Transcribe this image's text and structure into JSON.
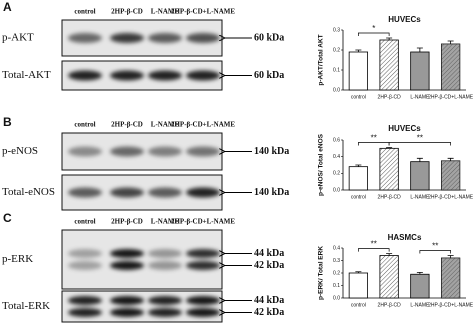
{
  "blots": [
    {
      "label": "A",
      "lanes": [
        "control",
        "2HP-β-CD",
        "L-NAME",
        "2HP-β-CD+L-NAME"
      ],
      "rows": [
        {
          "name": "p-AKT",
          "markers": [
            "60 kDa"
          ]
        },
        {
          "name": "Total-AKT",
          "markers": [
            "60 kDa"
          ]
        }
      ]
    },
    {
      "label": "B",
      "lanes": [
        "control",
        "2HP-β-CD",
        "L-NAME",
        "2HP-β-CD+L-NAME"
      ],
      "rows": [
        {
          "name": "p-eNOS",
          "markers": [
            "140 kDa"
          ]
        },
        {
          "name": "Total-eNOS",
          "markers": [
            "140 kDa"
          ]
        }
      ]
    },
    {
      "label": "C",
      "lanes": [
        "control",
        "2HP-β-CD",
        "L-NAME",
        "2HP-β-CD+L-NAME"
      ],
      "rows": [
        {
          "name": "p-ERK",
          "markers": [
            "44 kDa",
            "42 kDa"
          ]
        },
        {
          "name": "Total-ERK",
          "markers": [
            "44 kDa",
            "42 kDa"
          ]
        }
      ]
    }
  ],
  "chart_data": [
    {
      "type": "bar",
      "title": "HUVECs",
      "y_label": "p-AKT/Total AKT",
      "categories": [
        "control",
        "2HP-β-CD",
        "L-NAME",
        "2HP-β-CD+L-NAME"
      ],
      "values": [
        0.19,
        0.25,
        0.19,
        0.23
      ],
      "errors": [
        0.01,
        0.01,
        0.02,
        0.015
      ],
      "colors": [
        "#ffffff",
        "#ffffff",
        "#999999",
        "#666666"
      ],
      "hatch": [
        false,
        true,
        false,
        true
      ],
      "ylim": [
        0,
        0.3
      ],
      "yticks": [
        {
          "value": 0,
          "label": "0.0"
        },
        {
          "value": 0.1,
          "label": "0.1"
        },
        {
          "value": 0.2,
          "label": "0.2"
        },
        {
          "value": 0.3,
          "label": "0.3"
        }
      ],
      "annotations": [
        {
          "text": "*",
          "from": 0,
          "to": 1
        }
      ]
    },
    {
      "type": "bar",
      "title": "HUVECs",
      "y_label": "p-eNOS/ Total eNOS",
      "categories": [
        "control",
        "2HP-β-CD",
        "L-NAME",
        "2HP-β-CD+L-NAME"
      ],
      "values": [
        0.28,
        0.5,
        0.34,
        0.35
      ],
      "errors": [
        0.02,
        0.01,
        0.04,
        0.03
      ],
      "colors": [
        "#ffffff",
        "#ffffff",
        "#999999",
        "#666666"
      ],
      "hatch": [
        false,
        true,
        false,
        true
      ],
      "ylim": [
        0,
        0.6
      ],
      "yticks": [
        {
          "value": 0,
          "label": "0.0"
        },
        {
          "value": 0.2,
          "label": "0.2"
        },
        {
          "value": 0.4,
          "label": "0.4"
        },
        {
          "value": 0.6,
          "label": "0.6"
        }
      ],
      "annotations": [
        {
          "text": "**",
          "from": 0,
          "to": 1
        },
        {
          "text": "**",
          "from": 1,
          "to": 3
        }
      ]
    },
    {
      "type": "bar",
      "title": "HASMCs",
      "y_label": "p-ERK/ Total ERK",
      "categories": [
        "control",
        "2HP-β-CD",
        "L-NAME",
        "2HP-β-CD+L-NAME"
      ],
      "values": [
        0.2,
        0.34,
        0.19,
        0.32
      ],
      "errors": [
        0.01,
        0.015,
        0.015,
        0.02
      ],
      "colors": [
        "#ffffff",
        "#ffffff",
        "#999999",
        "#666666"
      ],
      "hatch": [
        false,
        true,
        false,
        true
      ],
      "ylim": [
        0,
        0.4
      ],
      "yticks": [
        {
          "value": 0,
          "label": "0.0"
        },
        {
          "value": 0.1,
          "label": "0.1"
        },
        {
          "value": 0.2,
          "label": "0.2"
        },
        {
          "value": 0.3,
          "label": "0.3"
        },
        {
          "value": 0.4,
          "label": "0.4"
        }
      ],
      "annotations": [
        {
          "text": "**",
          "from": 0,
          "to": 1
        },
        {
          "text": "**",
          "from": 2,
          "to": 3
        }
      ]
    }
  ]
}
